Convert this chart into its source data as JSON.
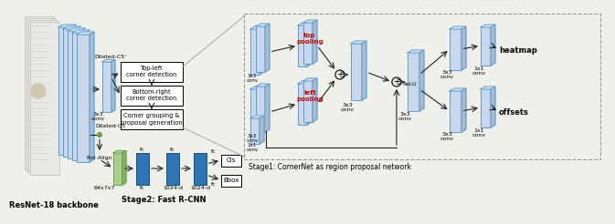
{
  "bg_color": "#f0f0eb",
  "stage1_label": "Stage1: CornerNet as region proposal network",
  "stage2_label": "Stage2: Fast R-CNN",
  "backbone_label": "ResNet-18 backbone",
  "dilated_c5p": "Dilated-C5'",
  "dilated_c5": "Dilated-C5",
  "roi_align_label": "RoI Align",
  "topleft_label": "Top-left\ncorner detection",
  "bottomright_label": "Bottom-right\ncorner detection",
  "grouping_label": "Corner grouping &\nproposal generation",
  "cls_label": "Cls",
  "bbox_label": "Bbox",
  "heatmap_label": "heatmap",
  "offsets_label": "offsets",
  "relu_label": "ReLU",
  "top_pooling": "top\npooling",
  "left_pooling": "left\npooling",
  "layer_face": "#c8d8ea",
  "layer_top": "#dce8f2",
  "layer_right": "#a8bcd0",
  "layer_edge": "#5b9bd5",
  "layer_face_green": "#a8d08d",
  "layer_edge_green": "#70a050",
  "fc_fill": "#2e75b6",
  "fc_edge": "#1a4f80",
  "red": "#cc0000",
  "box_fill": "#ffffff",
  "box_edge": "#333333",
  "arrow_color": "#222222",
  "dashed_color": "#999999"
}
